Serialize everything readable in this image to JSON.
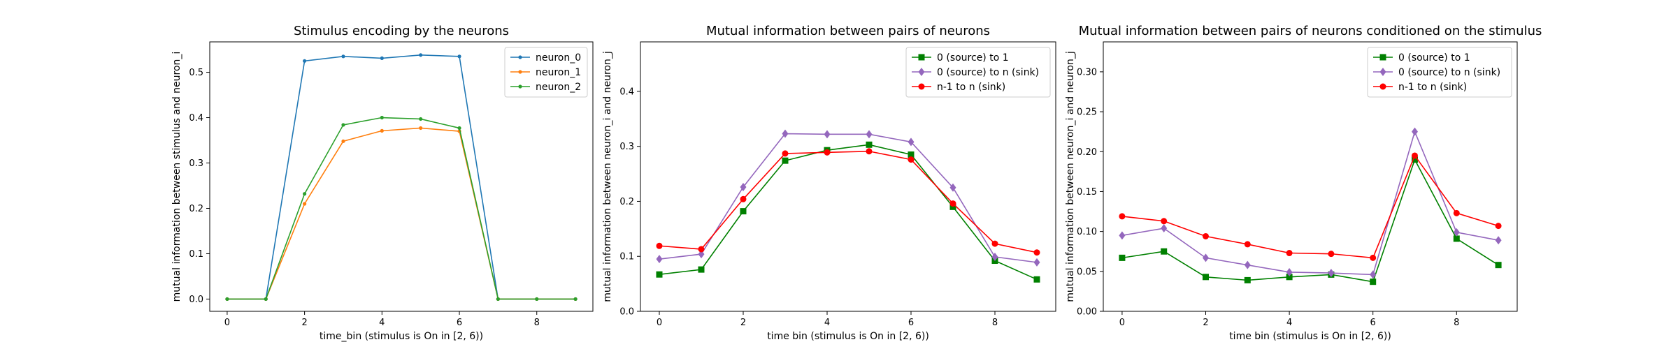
{
  "chart_data": [
    {
      "type": "line",
      "title": "Stimulus encoding by the neurons",
      "xlabel": "time_bin (stimulus is On in [2, 6))",
      "ylabel": "mutual information between stimulus and neuron_i",
      "x": [
        0,
        1,
        2,
        3,
        4,
        5,
        6,
        7,
        8,
        9
      ],
      "xlim": [
        -0.45,
        9.45
      ],
      "ylim": [
        -0.027,
        0.567
      ],
      "xticks": [
        0,
        2,
        4,
        6,
        8
      ],
      "yticks": [
        0.0,
        0.1,
        0.2,
        0.3,
        0.4,
        0.5
      ],
      "ytick_decimals": 1,
      "legend": "top-right",
      "series": [
        {
          "name": "neuron_0",
          "color": "#1f77b4",
          "marker": "point",
          "values": [
            0.0,
            0.0,
            0.525,
            0.535,
            0.531,
            0.538,
            0.535,
            0.0,
            0.0,
            0.0
          ]
        },
        {
          "name": "neuron_1",
          "color": "#ff7f0e",
          "marker": "point",
          "values": [
            0.0,
            0.0,
            0.21,
            0.348,
            0.371,
            0.377,
            0.37,
            0.0,
            0.0,
            0.0
          ]
        },
        {
          "name": "neuron_2",
          "color": "#2ca02c",
          "marker": "point",
          "values": [
            0.0,
            0.0,
            0.232,
            0.384,
            0.4,
            0.397,
            0.377,
            0.0,
            0.0,
            0.0
          ]
        }
      ]
    },
    {
      "type": "line",
      "title": "Mutual information between pairs of neurons",
      "xlabel": "time bin (stimulus is On in [2, 6))",
      "ylabel": "mutual information between neuron_i and neuron_j",
      "x": [
        0,
        1,
        2,
        3,
        4,
        5,
        6,
        7,
        8,
        9
      ],
      "xlim": [
        -0.45,
        9.45
      ],
      "ylim": [
        0.0,
        0.49
      ],
      "xticks": [
        0,
        2,
        4,
        6,
        8
      ],
      "yticks": [
        0.0,
        0.1,
        0.2,
        0.3,
        0.4
      ],
      "ytick_decimals": 1,
      "legend": "top-right",
      "series": [
        {
          "name": "0 (source) to 1",
          "color": "#008000",
          "marker": "square",
          "values": [
            0.067,
            0.076,
            0.182,
            0.274,
            0.293,
            0.303,
            0.285,
            0.19,
            0.092,
            0.058
          ]
        },
        {
          "name": "0 (source) to n (sink)",
          "color": "#9467bd",
          "marker": "diamond",
          "values": [
            0.095,
            0.104,
            0.226,
            0.323,
            0.322,
            0.322,
            0.308,
            0.225,
            0.099,
            0.089
          ]
        },
        {
          "name": "n-1 to n (sink)",
          "color": "#ff0000",
          "marker": "circle",
          "values": [
            0.119,
            0.113,
            0.204,
            0.287,
            0.289,
            0.291,
            0.276,
            0.196,
            0.123,
            0.107
          ]
        }
      ]
    },
    {
      "type": "line",
      "title": "Mutual information between pairs of neurons conditioned on the stimulus",
      "xlabel": "time bin (stimulus is On in [2, 6))",
      "ylabel": "mutual information between neuron_i and neuron_j",
      "x": [
        0,
        1,
        2,
        3,
        4,
        5,
        6,
        7,
        8,
        9
      ],
      "xlim": [
        -0.45,
        9.45
      ],
      "ylim": [
        0.0,
        0.3375
      ],
      "xticks": [
        0,
        2,
        4,
        6,
        8
      ],
      "yticks": [
        0.0,
        0.05,
        0.1,
        0.15,
        0.2,
        0.25,
        0.3
      ],
      "ytick_decimals": 2,
      "legend": "top-right",
      "series": [
        {
          "name": "0 (source) to 1",
          "color": "#008000",
          "marker": "square",
          "values": [
            0.067,
            0.075,
            0.043,
            0.039,
            0.043,
            0.046,
            0.037,
            0.19,
            0.091,
            0.058
          ]
        },
        {
          "name": "0 (source) to n (sink)",
          "color": "#9467bd",
          "marker": "diamond",
          "values": [
            0.095,
            0.104,
            0.067,
            0.058,
            0.049,
            0.048,
            0.046,
            0.225,
            0.099,
            0.089
          ]
        },
        {
          "name": "n-1 to n (sink)",
          "color": "#ff0000",
          "marker": "circle",
          "values": [
            0.119,
            0.113,
            0.094,
            0.084,
            0.073,
            0.072,
            0.067,
            0.195,
            0.123,
            0.107
          ]
        }
      ]
    }
  ]
}
